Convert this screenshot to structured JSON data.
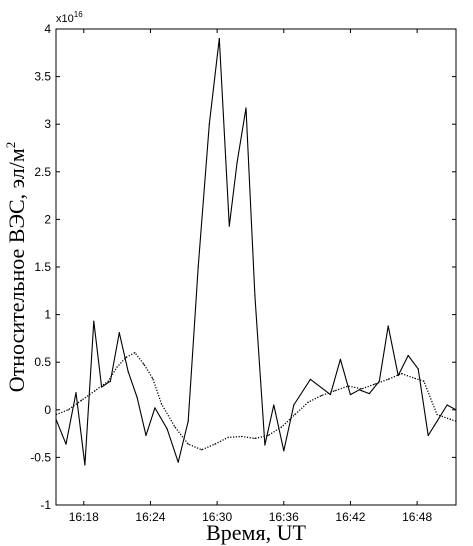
{
  "chart_data": {
    "type": "line",
    "title": "",
    "xlabel": "Время, UT",
    "ylabel": "Относительное ВЭС, эл/м",
    "ylabel_superscript": "2",
    "y_multiplier_base": "x10",
    "y_multiplier_exponent": "16",
    "xlim_minutes": [
      15.5,
      51.5
    ],
    "ylim": [
      -1,
      4
    ],
    "x_ticks": [
      {
        "minute": 18,
        "label": "16:18"
      },
      {
        "minute": 24,
        "label": "16:24"
      },
      {
        "minute": 30,
        "label": "16:30"
      },
      {
        "minute": 36,
        "label": "16:36"
      },
      {
        "minute": 42,
        "label": "16:42"
      },
      {
        "minute": 48,
        "label": "16:48"
      }
    ],
    "y_ticks": [
      {
        "value": -1,
        "label": "-1"
      },
      {
        "value": -0.5,
        "label": "-0.5"
      },
      {
        "value": 0,
        "label": "0"
      },
      {
        "value": 0.5,
        "label": "0.5"
      },
      {
        "value": 1,
        "label": "1"
      },
      {
        "value": 1.5,
        "label": "1.5"
      },
      {
        "value": 2,
        "label": "2"
      },
      {
        "value": 2.5,
        "label": "2.5"
      },
      {
        "value": 3,
        "label": "3"
      },
      {
        "value": 3.5,
        "label": "3.5"
      },
      {
        "value": 4,
        "label": "4"
      }
    ],
    "grid": false,
    "legend": "none",
    "series": [
      {
        "style": "solid",
        "color": "#000000",
        "x": [
          15.5,
          16.4,
          17.3,
          18.1,
          18.9,
          19.6,
          20.4,
          21.2,
          22.0,
          22.8,
          23.6,
          24.4,
          25.5,
          26.5,
          27.4,
          28.3,
          29.3,
          30.2,
          31.1,
          31.8,
          32.6,
          33.4,
          34.3,
          35.1,
          36.0,
          36.9,
          38.4,
          40.2,
          41.1,
          42.0,
          42.8,
          43.7,
          44.6,
          45.4,
          46.3,
          47.2,
          48.1,
          49.0,
          49.8,
          50.7,
          51.5
        ],
        "y": [
          -0.1,
          -0.36,
          0.18,
          -0.58,
          0.93,
          0.24,
          0.3,
          0.81,
          0.4,
          0.13,
          -0.27,
          0.02,
          -0.2,
          -0.55,
          -0.12,
          1.5,
          3.0,
          3.9,
          1.93,
          2.6,
          3.17,
          1.2,
          -0.37,
          0.05,
          -0.43,
          0.05,
          0.32,
          0.16,
          0.53,
          0.16,
          0.21,
          0.17,
          0.3,
          0.88,
          0.36,
          0.57,
          0.43,
          -0.27,
          -0.12,
          0.05,
          0.0
        ]
      },
      {
        "style": "dotted",
        "color": "#000000",
        "x": [
          15.5,
          16.6,
          17.8,
          19.0,
          20.2,
          21.0,
          21.8,
          22.6,
          23.4,
          24.2,
          25.0,
          26.2,
          27.4,
          28.6,
          29.8,
          31.0,
          32.2,
          33.4,
          34.6,
          35.8,
          37.0,
          38.2,
          39.4,
          40.6,
          41.8,
          43.0,
          44.2,
          45.4,
          46.6,
          47.8,
          48.6,
          49.8,
          51.0,
          51.5
        ],
        "y": [
          -0.05,
          0.0,
          0.1,
          0.2,
          0.3,
          0.45,
          0.55,
          0.6,
          0.48,
          0.33,
          0.06,
          -0.18,
          -0.36,
          -0.42,
          -0.36,
          -0.29,
          -0.28,
          -0.3,
          -0.27,
          -0.18,
          -0.05,
          0.08,
          0.15,
          0.2,
          0.25,
          0.22,
          0.27,
          0.32,
          0.38,
          0.33,
          0.3,
          -0.05,
          -0.1,
          -0.12
        ]
      }
    ]
  }
}
